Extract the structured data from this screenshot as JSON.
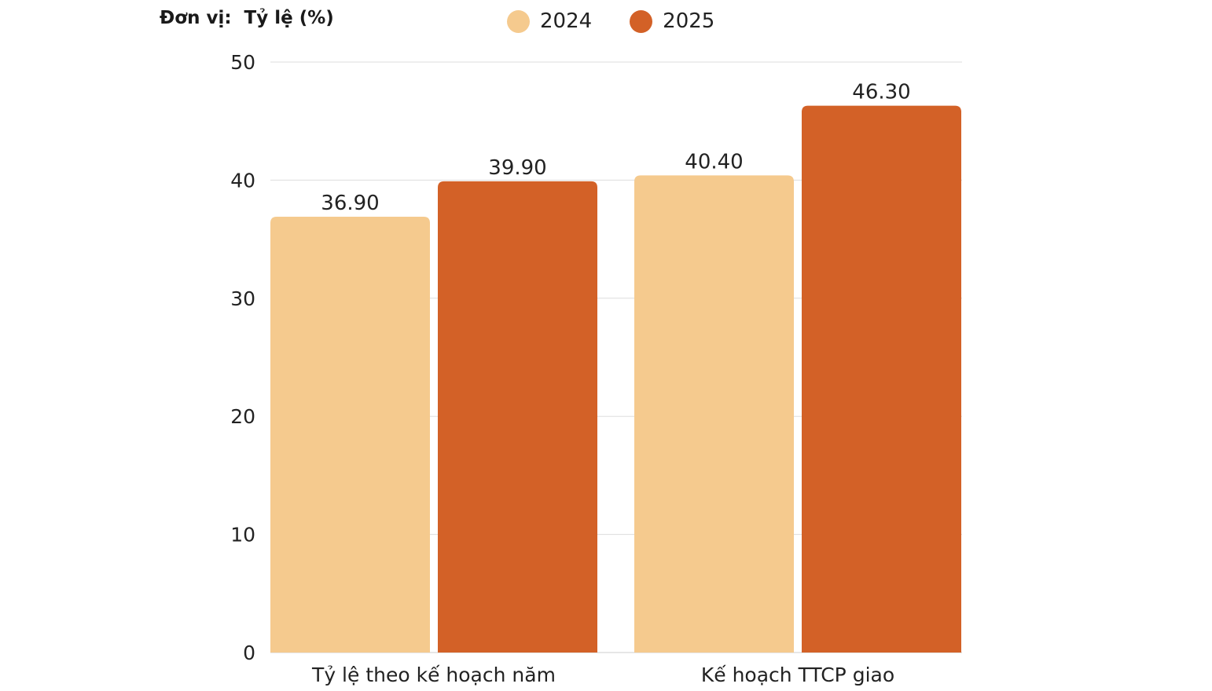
{
  "unit_label": "Đơn vị:  Tỷ lệ (%)",
  "colors": {
    "2024": "#f5ca8e",
    "2025": "#d36127",
    "grid": "#dddddd",
    "axis_text": "#222222"
  },
  "chart_data": {
    "type": "bar",
    "title": "",
    "categories": [
      "Tỷ lệ theo kế hoạch năm",
      "Kế hoạch TTCP giao"
    ],
    "series": [
      {
        "name": "2024",
        "values": [
          36.9,
          40.4
        ],
        "labels": [
          "36.90",
          "40.40"
        ]
      },
      {
        "name": "2025",
        "values": [
          39.9,
          46.3
        ],
        "labels": [
          "39.90",
          "46.30"
        ]
      }
    ],
    "yticks": [
      "0",
      "10",
      "20",
      "30",
      "40",
      "50"
    ],
    "ylim": [
      0,
      50
    ],
    "xlabel": "",
    "ylabel": "",
    "grid": true,
    "legend": "top"
  }
}
